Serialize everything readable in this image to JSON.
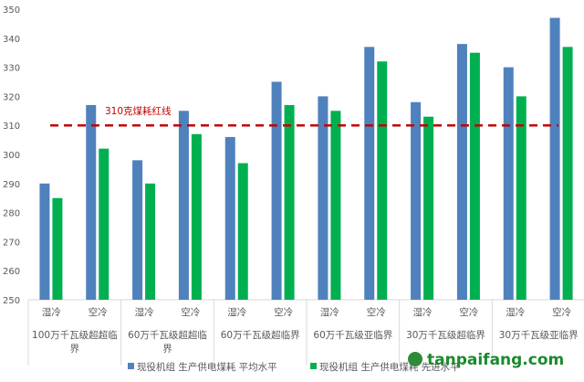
{
  "chart_data": {
    "type": "bar",
    "title": "",
    "xlabel": "",
    "ylabel": "",
    "ylim": [
      250,
      350
    ],
    "yticks": [
      "250",
      "260",
      "270",
      "280",
      "290",
      "300",
      "310",
      "320",
      "330",
      "340",
      "350"
    ],
    "grid": false,
    "groups": [
      "100万千瓦级超超临界",
      "60万千瓦级超超临界",
      "60万千瓦级超临界",
      "60万千瓦级亚临界",
      "30万千瓦级超临界",
      "30万千瓦级亚临界"
    ],
    "group_lines": [
      [
        "100万千瓦级超超临",
        "界"
      ],
      [
        "60万千瓦级超超临",
        "界"
      ],
      [
        "60万千瓦级超临界"
      ],
      [
        "60万千瓦级亚临界"
      ],
      [
        "30万千瓦级超临界"
      ],
      [
        "30万千瓦级亚临界"
      ]
    ],
    "subcategories": [
      "湿冷",
      "空冷"
    ],
    "series": [
      {
        "name": "现役机组 生产供电煤耗 平均水平",
        "color": "#4f81bd",
        "values": [
          290,
          317,
          298,
          315,
          306,
          325,
          320,
          337,
          318,
          338,
          330,
          347
        ]
      },
      {
        "name": "现役机组 生产供电煤耗 先进水平",
        "color": "#00b050",
        "values": [
          285,
          302,
          290,
          307,
          297,
          317,
          315,
          332,
          313,
          335,
          320,
          337
        ]
      }
    ],
    "reference_line": {
      "value": 310,
      "label": "310克煤耗红线",
      "color": "#c00000"
    },
    "legend_position": "bottom"
  },
  "watermark": "tanpaifang.com"
}
